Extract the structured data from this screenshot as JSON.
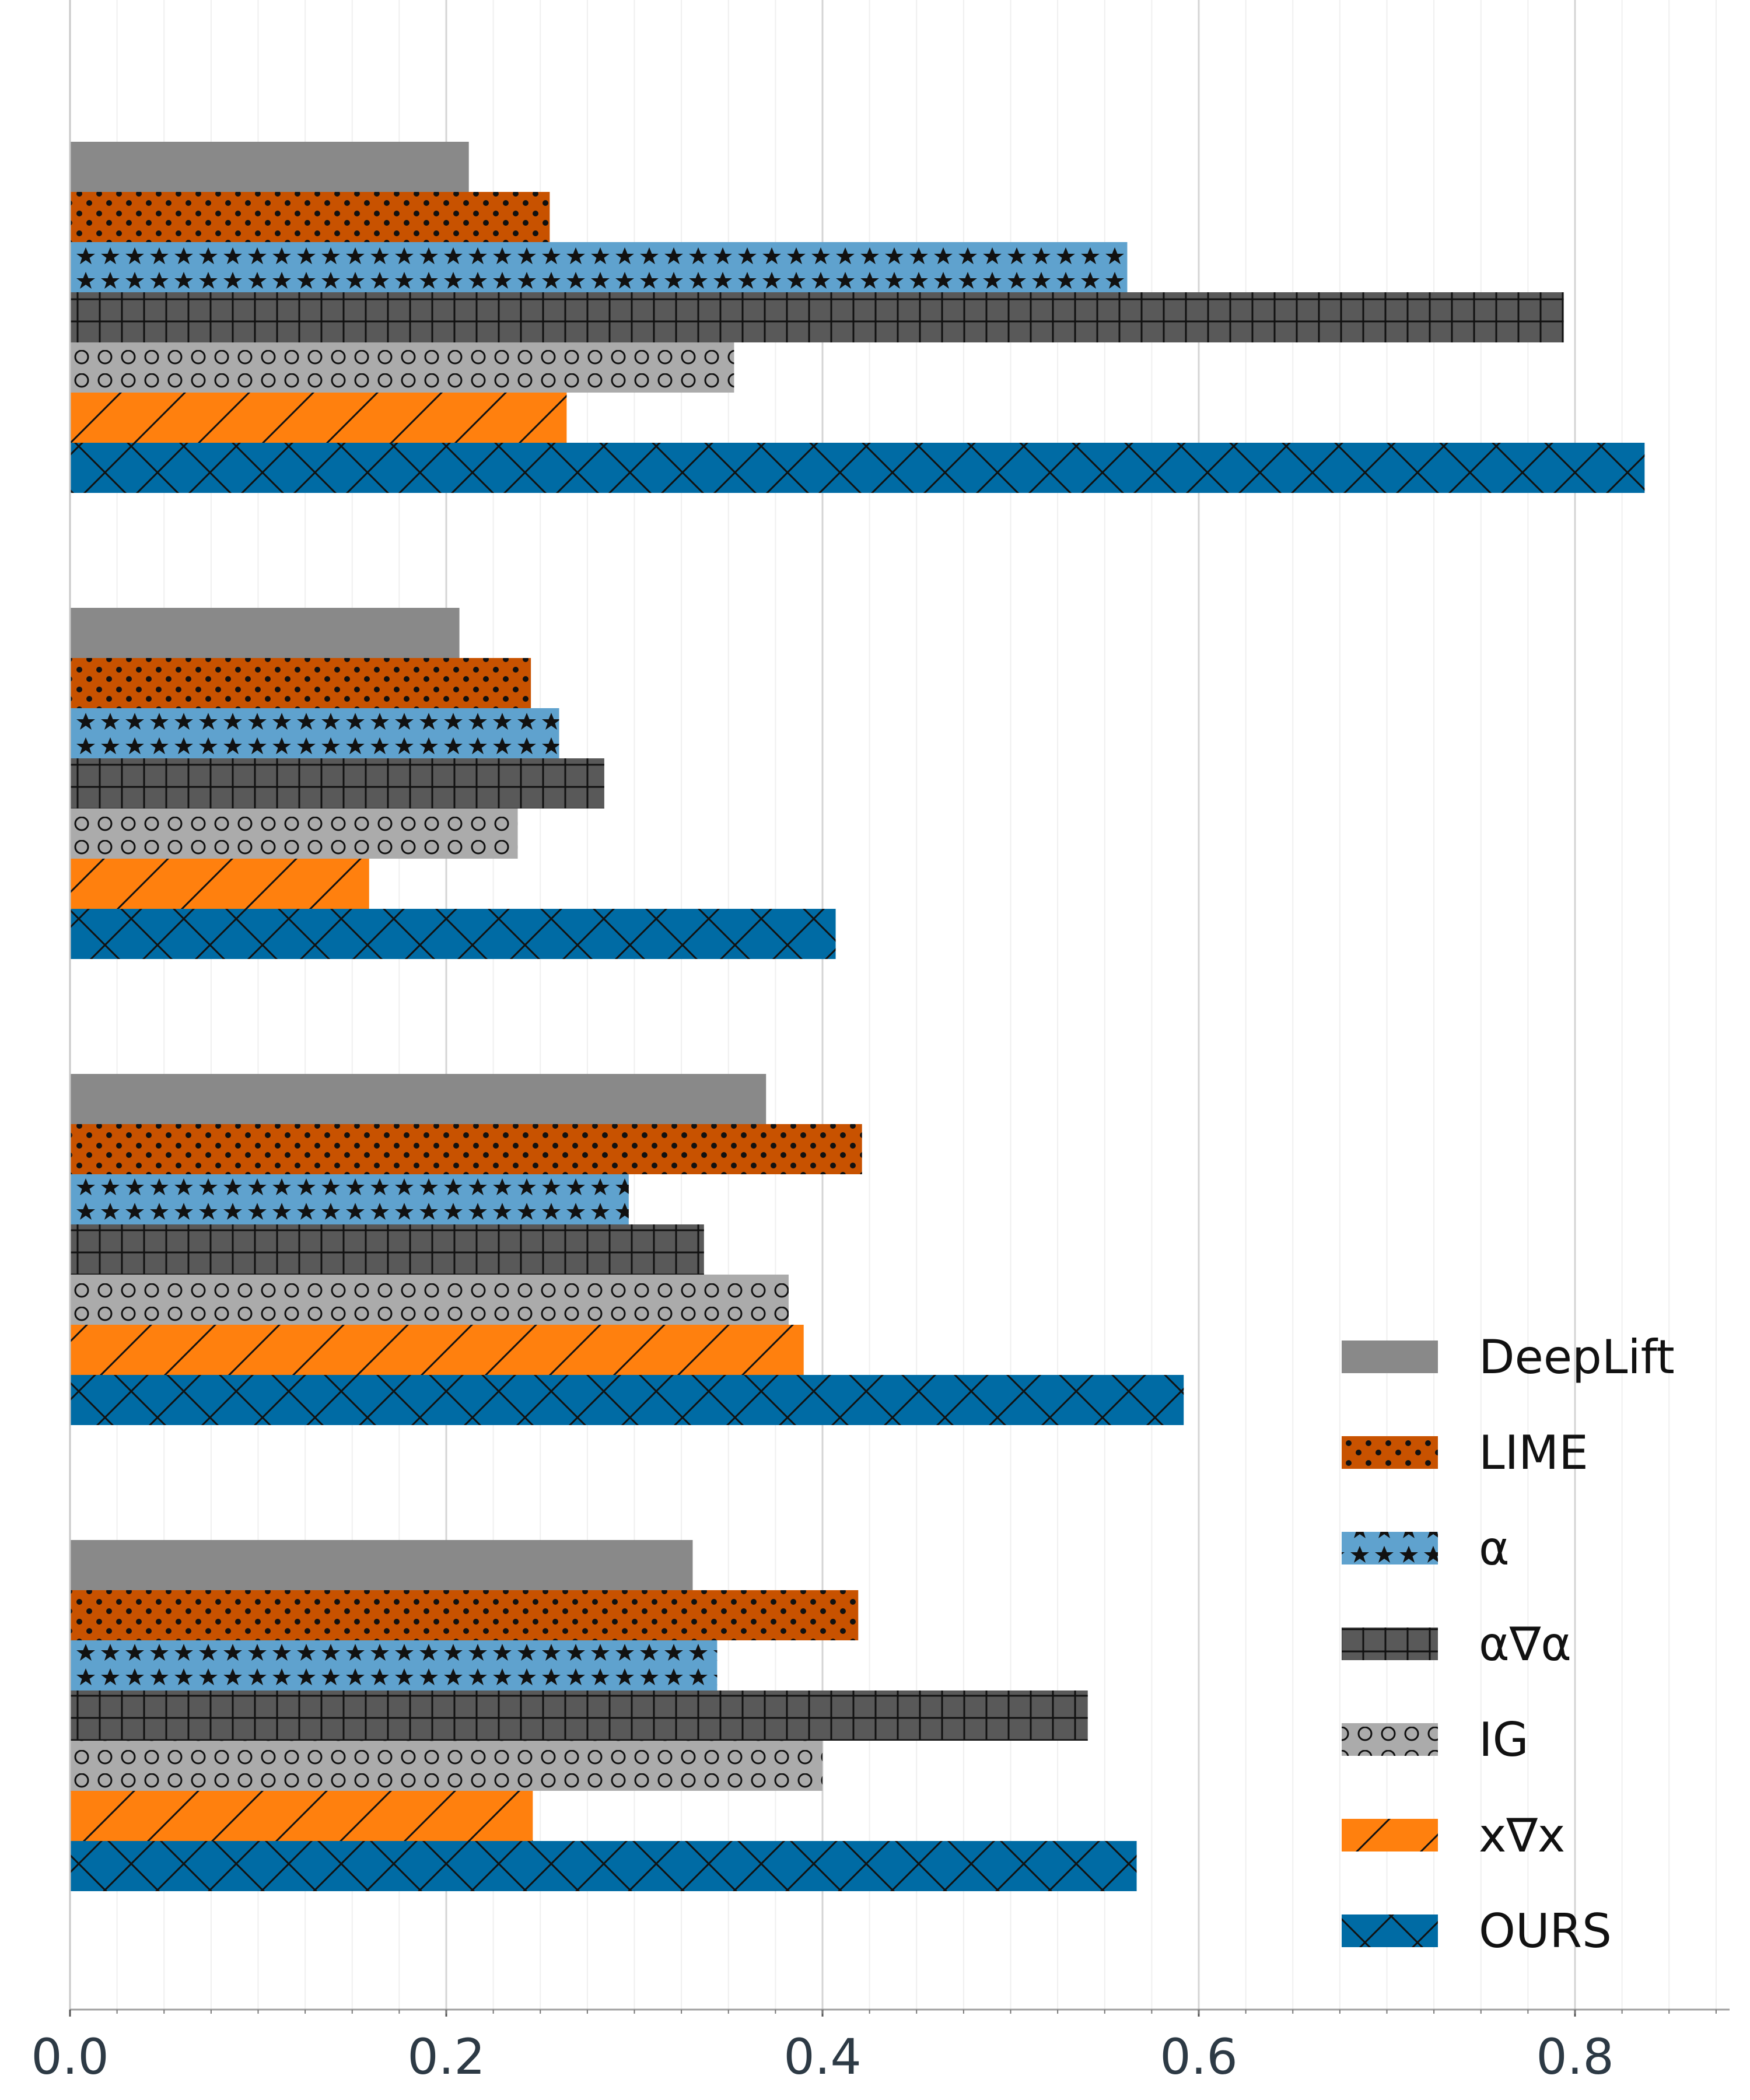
{
  "chart_data": {
    "type": "bar",
    "orientation": "horizontal",
    "grid": true,
    "legend_position": "bottom-right",
    "xlim": [
      0,
      0.88
    ],
    "xticks": [
      0.0,
      0.2,
      0.4,
      0.6,
      0.8
    ],
    "xtick_labels": [
      "0.0",
      "0.2",
      "0.4",
      "0.6",
      "0.8"
    ],
    "groups": 4,
    "series": [
      {
        "name": "DeepLift",
        "color": "#898989",
        "pattern": "none",
        "values": [
          0.212,
          0.207,
          0.37,
          0.331
        ]
      },
      {
        "name": "LIME",
        "color": "#c85200",
        "pattern": "dots",
        "values": [
          0.255,
          0.245,
          0.421,
          0.419
        ]
      },
      {
        "name": "α",
        "color": "#5fa2ce",
        "pattern": "stars",
        "values": [
          0.562,
          0.26,
          0.297,
          0.344
        ]
      },
      {
        "name": "α∇α",
        "color": "#595959",
        "pattern": "plus",
        "values": [
          0.794,
          0.284,
          0.337,
          0.541
        ]
      },
      {
        "name": "IG",
        "color": "#ababab",
        "pattern": "circles",
        "values": [
          0.353,
          0.238,
          0.382,
          0.4
        ]
      },
      {
        "name": "x∇x",
        "color": "#ff800e",
        "pattern": "slash",
        "values": [
          0.264,
          0.159,
          0.39,
          0.246
        ]
      },
      {
        "name": "OURS",
        "color": "#006ba4",
        "pattern": "cross",
        "values": [
          0.837,
          0.407,
          0.592,
          0.567
        ]
      }
    ]
  }
}
